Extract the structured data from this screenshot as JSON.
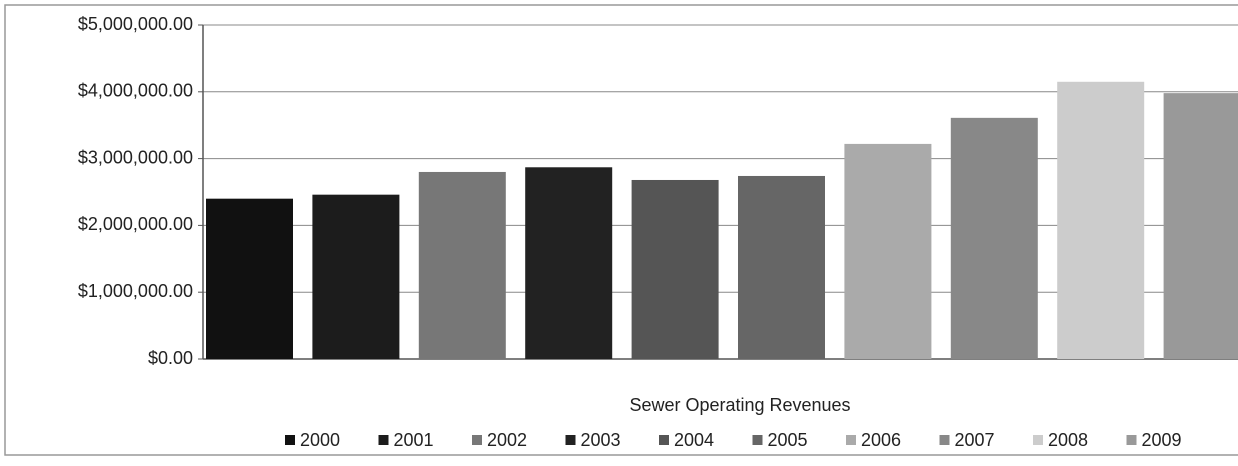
{
  "chart_data": {
    "type": "bar",
    "categories": [
      "Sewer Operating Revenues"
    ],
    "series": [
      {
        "name": "2000",
        "color": "#111111",
        "values": [
          2400000
        ]
      },
      {
        "name": "2001",
        "color": "#1c1c1c",
        "values": [
          2460000
        ]
      },
      {
        "name": "2002",
        "color": "#777777",
        "values": [
          2800000
        ]
      },
      {
        "name": "2003",
        "color": "#222222",
        "values": [
          2870000
        ]
      },
      {
        "name": "2004",
        "color": "#555555",
        "values": [
          2680000
        ]
      },
      {
        "name": "2005",
        "color": "#666666",
        "values": [
          2740000
        ]
      },
      {
        "name": "2006",
        "color": "#aaaaaa",
        "values": [
          3220000
        ]
      },
      {
        "name": "2007",
        "color": "#888888",
        "values": [
          3610000
        ]
      },
      {
        "name": "2008",
        "color": "#cccccc",
        "values": [
          4150000
        ]
      },
      {
        "name": "2009",
        "color": "#999999",
        "values": [
          3980000
        ]
      }
    ],
    "ylim": [
      0,
      5000000
    ],
    "yticks": [
      {
        "value": 0,
        "label": "$0.00"
      },
      {
        "value": 1000000,
        "label": "$1,000,000.00"
      },
      {
        "value": 2000000,
        "label": "$2,000,000.00"
      },
      {
        "value": 3000000,
        "label": "$3,000,000.00"
      },
      {
        "value": 4000000,
        "label": "$4,000,000.00"
      },
      {
        "value": 5000000,
        "label": "$5,000,000.00"
      }
    ],
    "grid": true,
    "legend": "bottom"
  }
}
